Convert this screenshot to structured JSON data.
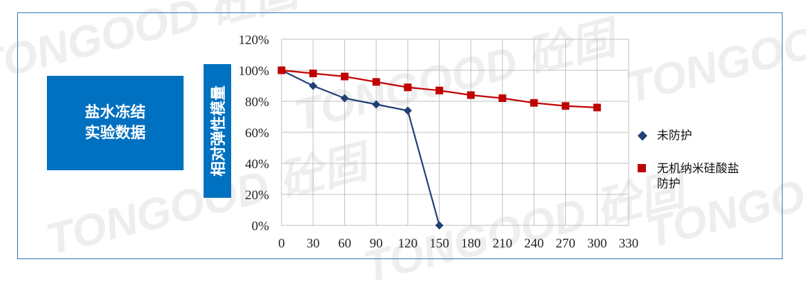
{
  "title_box": {
    "line1": "盐水冻结",
    "line2": "实验数据"
  },
  "colors": {
    "blue_box": "#0070c0",
    "series1": "#1f3f75",
    "series2": "#c00000",
    "grid": "#bfbfbf",
    "frame": "#2e74b5"
  },
  "watermark": {
    "text": "TONGOOD 砼固"
  },
  "chart_data": {
    "type": "line",
    "xlabel": "",
    "ylabel": "相对弹性模量",
    "x_ticks": [
      0,
      30,
      60,
      90,
      120,
      150,
      180,
      210,
      240,
      270,
      300,
      330
    ],
    "y_ticks": [
      "0%",
      "20%",
      "40%",
      "60%",
      "80%",
      "100%",
      "120%"
    ],
    "xlim": [
      0,
      330
    ],
    "ylim": [
      0,
      120
    ],
    "grid": true,
    "legend_position": "right",
    "series": [
      {
        "name": "未防护",
        "marker": "diamond",
        "color": "#1f3f75",
        "x": [
          0,
          30,
          60,
          90,
          120,
          150
        ],
        "y": [
          100,
          90,
          82,
          78,
          74,
          0
        ]
      },
      {
        "name": "无机纳米硅酸盐防护",
        "name_line1": "无机纳米硅酸盐",
        "name_line2": "防护",
        "marker": "square",
        "color": "#c00000",
        "x": [
          0,
          30,
          60,
          90,
          120,
          150,
          180,
          210,
          240,
          270,
          300
        ],
        "y": [
          100,
          98,
          96,
          92.5,
          89,
          87,
          84,
          82,
          79,
          77,
          76
        ]
      }
    ]
  }
}
